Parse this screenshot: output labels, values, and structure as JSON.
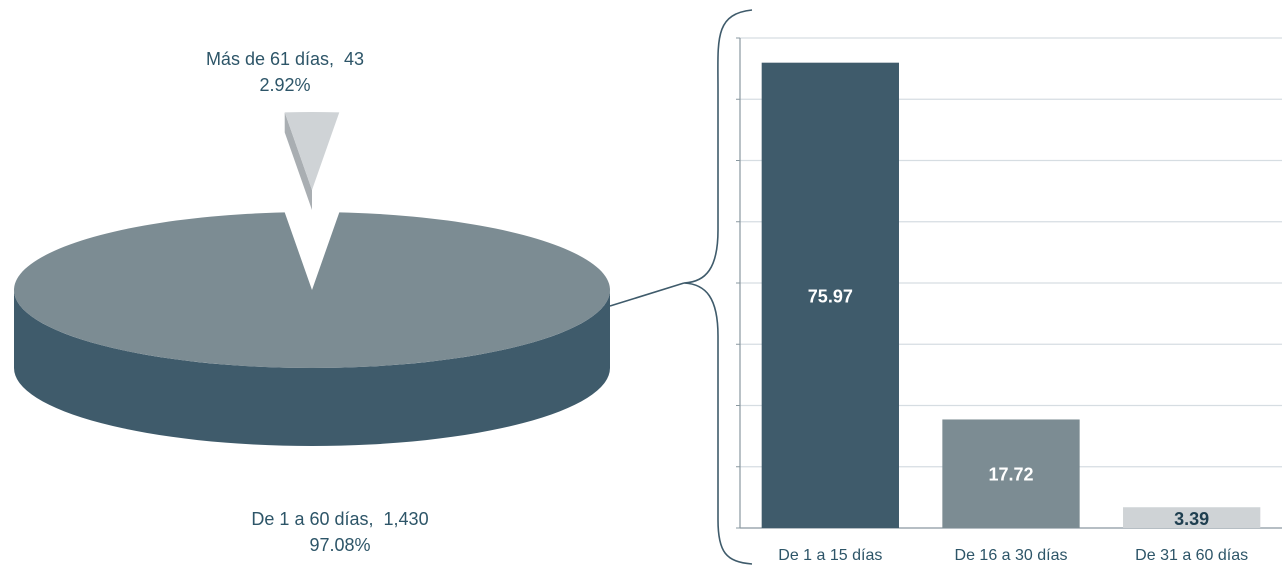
{
  "colors": {
    "pie_main_top": "#7c8c93",
    "pie_main_side": "#3f5b6b",
    "pie_small_top": "#cfd3d6",
    "pie_small_side": "#a9aeb2",
    "bar_dark": "#3f5b6b",
    "bar_mid": "#7c8c93",
    "bar_light": "#cfd3d6",
    "grid": "#d6dde2",
    "axis": "#8a98a0",
    "label_text": "#2d5568",
    "connector": "#3f5b6b"
  },
  "chart_data": [
    {
      "type": "pie",
      "slices": [
        {
          "name": "Más de 61 días",
          "count": 43,
          "count_text": "43",
          "percent": 2.92,
          "percent_text": "2.92%",
          "exploded": true
        },
        {
          "name": "De 1 a 60 días",
          "count": 1430,
          "count_text": "1,430",
          "percent": 97.08,
          "percent_text": "97.08%",
          "exploded": false
        }
      ]
    },
    {
      "type": "bar",
      "categories": [
        "De 1 a 15 días",
        "De 16 a 30 días",
        "De 31 a 60 días"
      ],
      "values": [
        75.97,
        17.72,
        3.39
      ],
      "value_labels": [
        "75.97",
        "17.72",
        "3.39"
      ],
      "ylim": [
        0,
        80
      ],
      "grid": true,
      "ytick_count": 8,
      "tick_labels_visible": false
    }
  ]
}
